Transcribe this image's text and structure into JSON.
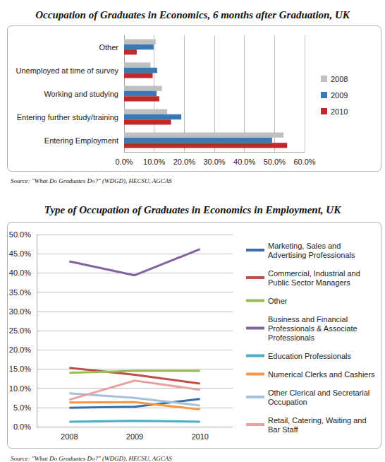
{
  "chart_data": [
    {
      "type": "bar",
      "title": "Occupation of Graduates in Economics, 6 months after Graduation, UK",
      "source": "Source: \"What Do Graduates Do?\" (WDGD), HECSU, AGCAS",
      "orientation": "horizontal",
      "categories": [
        "Entering Employment",
        "Entering further study/training",
        "Working and studying",
        "Unemployed at time of survey",
        "Other"
      ],
      "series": [
        {
          "name": "2008",
          "color": "#bfbfbf",
          "values": [
            53.0,
            14.3,
            12.6,
            8.8,
            10.5
          ]
        },
        {
          "name": "2009",
          "color": "#3a78b8",
          "values": [
            49.2,
            19.0,
            10.8,
            11.0,
            9.8
          ]
        },
        {
          "name": "2010",
          "color": "#c0282e",
          "values": [
            54.2,
            15.6,
            11.7,
            9.5,
            4.2
          ]
        }
      ],
      "xlim": [
        0,
        60
      ],
      "xticks": [
        {
          "value": 0,
          "label": "0.0%"
        },
        {
          "value": 10,
          "label": "10.0%"
        },
        {
          "value": 20,
          "label": "20.0%"
        },
        {
          "value": 30,
          "label": "30.0%"
        },
        {
          "value": 40,
          "label": "40.0%"
        },
        {
          "value": 50,
          "label": "50.0%"
        },
        {
          "value": 60,
          "label": "60.0%"
        }
      ],
      "grid": true,
      "legend": "right"
    },
    {
      "type": "line",
      "title": "Type of Occupation of Graduates in Economics in Employment, UK",
      "source": "Source: \"What Do Graduates Do?\" (WDGD), HECSU, AGCAS",
      "categories": [
        "2008",
        "2009",
        "2010"
      ],
      "series": [
        {
          "name": "Marketing, Sales and Advertising Professionals",
          "color": "#3b6ea8",
          "values": [
            4.9,
            5.2,
            7.2
          ]
        },
        {
          "name": "Commercial, Industrial and Public Sector Managers",
          "color": "#bf4f4b",
          "values": [
            15.3,
            13.5,
            11.2
          ]
        },
        {
          "name": "Other",
          "color": "#9bbb59",
          "values": [
            14.0,
            14.5,
            14.5
          ]
        },
        {
          "name": "Business and Financial Professionals & Associate Professionals",
          "color": "#8064a2",
          "values": [
            43.0,
            39.4,
            46.2
          ]
        },
        {
          "name": "Education Professionals",
          "color": "#4bacc6",
          "values": [
            1.3,
            1.5,
            1.3
          ]
        },
        {
          "name": "Numerical Clerks and Cashiers",
          "color": "#f79646",
          "values": [
            6.3,
            6.4,
            4.5
          ]
        },
        {
          "name": "Other Clerical and Secretarial Occupation",
          "color": "#a5bfdc",
          "values": [
            8.7,
            7.5,
            5.5
          ]
        },
        {
          "name": "Retail, Catering, Waiting and Bar Staff",
          "color": "#e8a3a1",
          "values": [
            7.0,
            12.0,
            9.6
          ]
        }
      ],
      "ylim": [
        0,
        50
      ],
      "yticks": [
        {
          "value": 0,
          "label": "0.0%"
        },
        {
          "value": 5,
          "label": "5.0%"
        },
        {
          "value": 10,
          "label": "10.0%"
        },
        {
          "value": 15,
          "label": "15.0%"
        },
        {
          "value": 20,
          "label": "20.0%"
        },
        {
          "value": 25,
          "label": "25.0%"
        },
        {
          "value": 30,
          "label": "30.0%"
        },
        {
          "value": 35,
          "label": "35.0%"
        },
        {
          "value": 40,
          "label": "40.0%"
        },
        {
          "value": 45,
          "label": "45.0%"
        },
        {
          "value": 50,
          "label": "50.0%"
        }
      ],
      "grid": true,
      "legend": "right"
    }
  ]
}
